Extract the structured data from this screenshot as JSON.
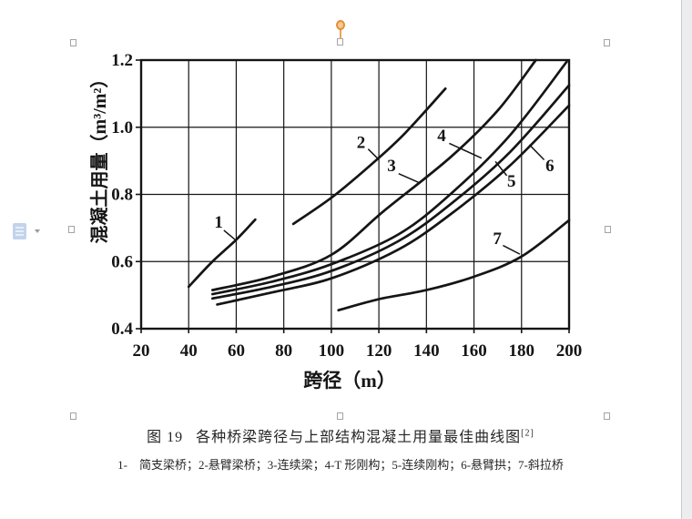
{
  "app_context": {
    "canvas_background": "#ebedef",
    "page_background": "#ffffff"
  },
  "selection": {
    "state": "image-selected",
    "handle_fill": "#ffffff",
    "handle_border": "#a3a3a8",
    "rotation_handle_color": "#e2913d",
    "rotation_handle_fill": "#f9c98f"
  },
  "icons": {
    "paste_options": "paste-options-icon",
    "dropdown_arrow": "▾",
    "rotation_handle": "rotation-handle-icon"
  },
  "figure": {
    "caption": {
      "label": "图 19",
      "title": "各种桥梁跨径与上部结构混凝土用量最佳曲线图",
      "reference": "[2]"
    },
    "legend_note": "1-　简支梁桥；2-悬臂梁桥；3-连续梁；4-T 形刚构；5-连续刚构；6-悬臂拱；7-斜拉桥"
  },
  "chart_data": {
    "type": "line",
    "title": "",
    "xlabel": "跨径（m）",
    "ylabel": "混凝土用量（m³/m²）",
    "xlim": [
      20,
      200
    ],
    "ylim": [
      0.4,
      1.2
    ],
    "xticks": [
      20,
      40,
      60,
      80,
      100,
      120,
      140,
      160,
      180,
      200
    ],
    "yticks": [
      0.4,
      0.6,
      0.8,
      1.0,
      1.2
    ],
    "grid": true,
    "ink_color": "#151515",
    "legend_position": "none",
    "series": [
      {
        "name": "1 简支梁桥",
        "label": "1",
        "points": [
          [
            40,
            0.525
          ],
          [
            50,
            0.6
          ],
          [
            60,
            0.665
          ],
          [
            68,
            0.725
          ]
        ]
      },
      {
        "name": "2 悬臂梁桥",
        "label": "2",
        "points": [
          [
            84,
            0.712
          ],
          [
            100,
            0.79
          ],
          [
            115,
            0.878
          ],
          [
            130,
            0.975
          ],
          [
            148,
            1.115
          ]
        ]
      },
      {
        "name": "3 连续梁",
        "label": "3",
        "points": [
          [
            50,
            0.515
          ],
          [
            75,
            0.555
          ],
          [
            100,
            0.62
          ],
          [
            122,
            0.75
          ],
          [
            150,
            0.91
          ],
          [
            170,
            1.05
          ],
          [
            186,
            1.2
          ]
        ]
      },
      {
        "name": "4 T形刚构",
        "label": "4",
        "points": [
          [
            50,
            0.503
          ],
          [
            75,
            0.54
          ],
          [
            100,
            0.592
          ],
          [
            128,
            0.68
          ],
          [
            150,
            0.8
          ],
          [
            175,
            0.975
          ],
          [
            199,
            1.195
          ]
        ]
      },
      {
        "name": "5 连续刚构",
        "label": "5",
        "points": [
          [
            50,
            0.49
          ],
          [
            75,
            0.525
          ],
          [
            100,
            0.572
          ],
          [
            128,
            0.66
          ],
          [
            150,
            0.77
          ],
          [
            175,
            0.925
          ],
          [
            200,
            1.125
          ]
        ]
      },
      {
        "name": "6 悬臂拱",
        "label": "6",
        "points": [
          [
            52,
            0.472
          ],
          [
            75,
            0.508
          ],
          [
            100,
            0.55
          ],
          [
            128,
            0.635
          ],
          [
            150,
            0.74
          ],
          [
            175,
            0.885
          ],
          [
            200,
            1.065
          ]
        ]
      },
      {
        "name": "7 斜拉桥",
        "label": "7",
        "points": [
          [
            103,
            0.455
          ],
          [
            120,
            0.488
          ],
          [
            140,
            0.515
          ],
          [
            160,
            0.555
          ],
          [
            180,
            0.615
          ],
          [
            200,
            0.723
          ]
        ]
      }
    ],
    "annotations": [
      {
        "text": "1",
        "x": 52.6,
        "y": 0.717,
        "leader": [
          [
            54.8,
            0.693
          ],
          [
            59.4,
            0.666
          ]
        ]
      },
      {
        "text": "2",
        "x": 112.5,
        "y": 0.955,
        "leader": [
          [
            115.5,
            0.935
          ],
          [
            119.8,
            0.905
          ]
        ]
      },
      {
        "text": "3",
        "x": 125.3,
        "y": 0.885,
        "leader": [
          [
            128.3,
            0.862
          ],
          [
            137.2,
            0.834
          ]
        ]
      },
      {
        "text": "4",
        "x": 146.4,
        "y": 0.975,
        "leader": [
          [
            149.6,
            0.952
          ],
          [
            163.2,
            0.908
          ]
        ]
      },
      {
        "text": "5",
        "x": 175.8,
        "y": 0.84,
        "leader": [
          [
            169.0,
            0.898
          ],
          [
            173.8,
            0.856
          ]
        ]
      },
      {
        "text": "6",
        "x": 191.9,
        "y": 0.886,
        "leader": [
          [
            183.3,
            0.948
          ],
          [
            189.5,
            0.903
          ]
        ]
      },
      {
        "text": "7",
        "x": 169.8,
        "y": 0.668,
        "leader": [
          [
            172.2,
            0.648
          ],
          [
            179.3,
            0.622
          ]
        ]
      }
    ]
  }
}
